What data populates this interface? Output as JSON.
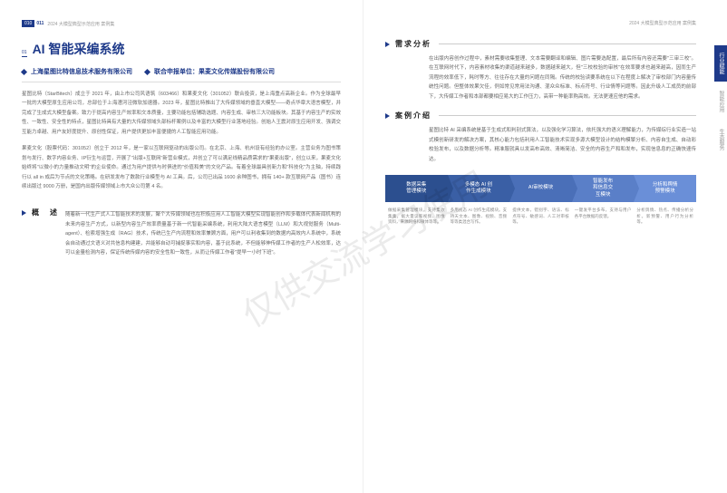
{
  "header": {
    "page_left": "010",
    "page_right": "011",
    "breadcrumb": "2024 大模型典型示范应用 案例集"
  },
  "title_num": "01",
  "title": "AI 智能采编系统",
  "company1": "上海星图比特信息技术服务有限公司",
  "company2_label": "联合申报单位：果麦文化传媒股份有限公司",
  "para1": "星图比特（StarBitech）成立于 2021 年，由上市公司风语筑（603466）和果麦文化（301052）联合投资，是上海重点高新企业。作为全球最早一批的大模型原生应用公司，总部位于上海漕河泾微软加速器。2023 年，星图比特推出了大传媒领域的垂直大模型——奇点华章大语言模型，并完成了生成式大模型备案。致力于提高内容生产效率和文本质量，主要功能包括辅助选题、内容生成、审核三大功能板块。其基于内容生产的实效性、一致性、安全性的特点，星图比特具有大量的大传媒领域头部标杆案例以及丰富的大模型行业落地经验。创始人王震对原生应用开发、强调交互能力卓越、用户友好度提升、原创性保证，用户提供更加丰富便捷的人工智能应用功能。",
  "para2": "果麦文化（股票代码：301052）创立于 2012 年，是一家以互联网驱动的出版公司。在北京、上海、杭州设有经验的办公室。主营业务为图书策划与发行、数字内容业务、IP衍生与运营，开展了\"出版+互联网\"新营业模式，并创立了可以满足线精品质需求的\"果麦出版\"，创立以来，果麦文化始终将\"以微小的力量推动文明\"的企业使命。通过为用户提供与时俱进的\"价值和美\"的文化产品。有着全球最具创新力和\"科技化\"为主轴，持续践行以 all in 成后为节点的文化策略。在研发发布了数款行业模型与 AI 工具。后，公司已出品 1600 余种图书，拥有 140+ 款互联网产品（图书）连续出版过 9000 万册，是国内出版传媒领域上市大众公司第 4 名。",
  "overview_title": "概　述",
  "overview_para": "随着新一代生产式人工智能技术的发展，聚个大传媒领域也在积极应用人工智能大模型实现智能创作和多载体代表新闻机构的未来内容生产方式，以新型内容生产效率质量基于新一代智能采编系统，利用大陆大语言模型（LLM）和大视觉服务（Multi-agent）、检索增强生成（RAG）技术，传统已生产内流程和效率兼顾方面，用户可以利收集到的数据内高效内人系统中，系统会自动通过文语义对共信息构建建，并能够自动可捕捉事实和内容，基于此系统，不但能够伸传媒工作者的生产人松效率，达可以金量检测内容，保证传统传媒内容的安全性和一致性，从而让传媒工作者\"提早一小时下班\"。",
  "analysis_title": "需求分析",
  "analysis_para": "在出版内容创作过程中，素材需要收集整理、文本需要翻译和编辑、图片需要选配置，最后所有内容还需要\"三审三校\"。在互联网时代下，内容素材收集的渠道越来越多，数据越来越大，但\"三校校验的审核\"在效率要求也越来越高，因而生产流程的效率低下，耗时等方、往往存在大量的问题在同隔。传统的校验读要系统在以下在程度上解决了审校部门内容量传统性问题。但整体效果欠佳，例如常见常用法沟通、混众众标准、标点符号、行业情等问题等。因此升级人工成员的前部下，大传媒工作者和本部都要相应易大的工作压力，高带一种能率购高效。无法更速应他的需求。",
  "intro_title": "案例介绍",
  "intro_para": "星图比特 AI 采编系统是基于生成式和判别式算法，以及强化学习算法，依托强大的语义理解能力，为传媒综行业实造一站式模创新研发的解决方案，其核心能力包括利用人工智能技术实现多源大模型设计的结构模擎分析、内容自生成、自动彩校验发布，以及数据分析等。精准服就具以发高布高效、清晰简洁、安全的内容生产和和发布，实现信息息的正确快速传达。",
  "modules": [
    {
      "head": "数据采集\n管理模块",
      "body": "做据采集管理模块，支持集收集集，据大量议和视频、图像资料，来源网络和微体等等。"
    },
    {
      "head": "多模态 AI 创\n作生成模块",
      "body": "多用视态 AI 创作生成模块。支持天文本、图像、视频、音频等等类混合写作。"
    },
    {
      "head": "AI审校模块",
      "body": "提供文本，错别字、语法、标点符号、敏感词、人工对审核等。"
    },
    {
      "head": "智能发布\n和信息交\n互模块",
      "body": "一键发平台多布，支持与用户各平台数据的反馈。"
    },
    {
      "head": "分析和舆情\n预警模块",
      "body": "分析舆情、热点、传播分析分析。新预警、用户行为分析等。"
    }
  ],
  "tabs": [
    "行业赋能",
    "智能应用",
    "生态服务"
  ],
  "watermark": "仅供交流学习使用",
  "colors": {
    "primary": "#1e3a8a"
  }
}
